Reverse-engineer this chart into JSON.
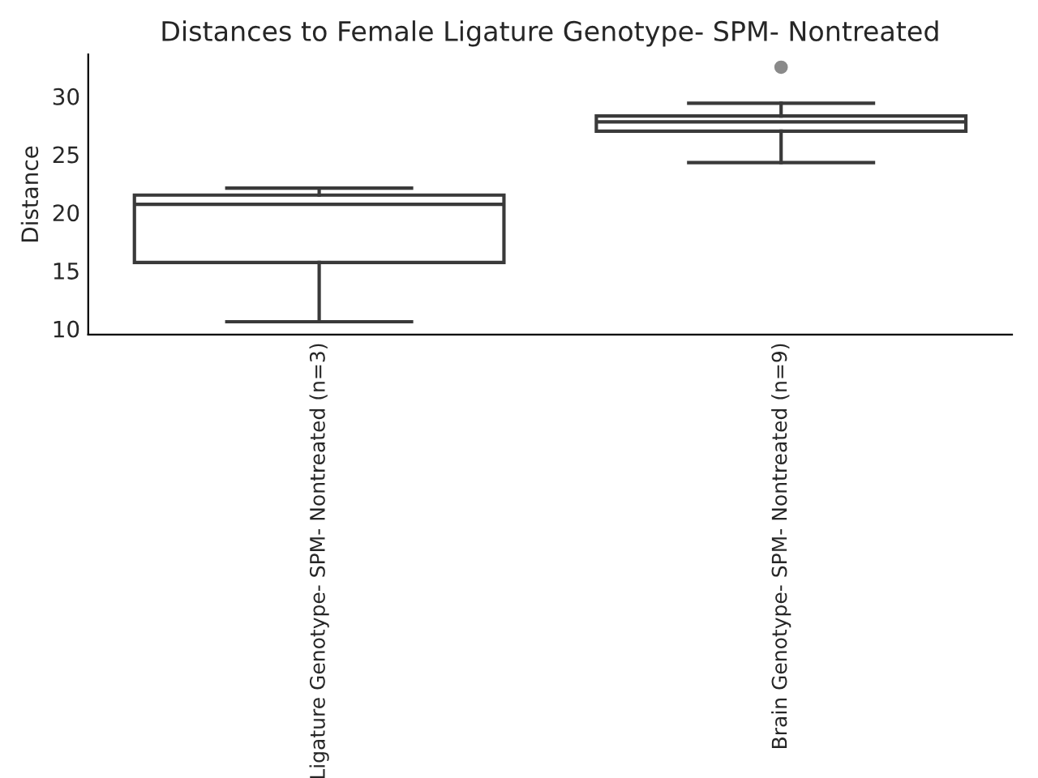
{
  "chart_data": {
    "type": "box",
    "title": "Distances to Female Ligature Genotype- SPM- Nontreated",
    "ylabel": "Distance",
    "categories": [
      "Ligature Genotype- SPM- Nontreated (n=3)",
      "Brain Genotype- SPM- Nontreated (n=9)"
    ],
    "boxes": [
      {
        "low": 10.6,
        "q1": 15.7,
        "median": 20.7,
        "q3": 21.5,
        "high": 22.1
      },
      {
        "low": 24.3,
        "q1": 27.0,
        "median": 27.8,
        "q3": 28.3,
        "high": 29.4,
        "outliers": [
          32.5
        ]
      }
    ],
    "color": "#ffffff",
    "ylim": [
      9.5,
      33.6
    ],
    "yticks": [
      10,
      15,
      20,
      25,
      30
    ],
    "grid": false,
    "legend": false
  }
}
